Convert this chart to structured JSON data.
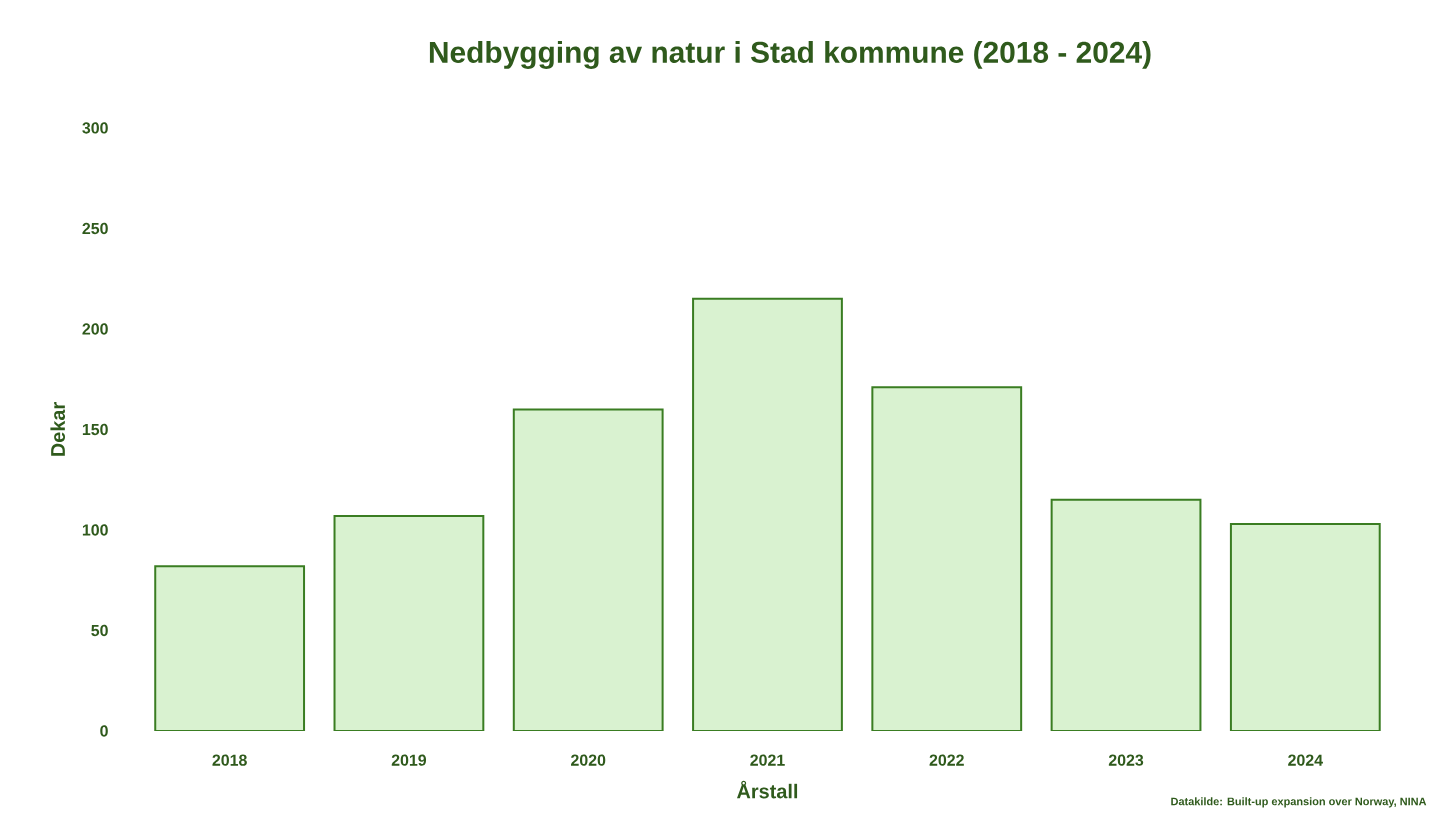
{
  "chart_data": {
    "type": "bar",
    "title": "Nedbygging av natur i Stad kommune (2018 - 2024)",
    "xlabel": "Årstall",
    "ylabel": "Dekar",
    "categories": [
      "2018",
      "2019",
      "2020",
      "2021",
      "2022",
      "2023",
      "2024"
    ],
    "values": [
      82,
      107,
      160,
      215,
      171,
      115,
      103
    ],
    "color": "#d9f2d0",
    "ylim": [
      0,
      300
    ],
    "yticks": [
      0,
      50,
      100,
      150,
      200,
      250,
      300
    ],
    "grid": false,
    "annotations": [
      "Datakilde: Built-up expansion over Norway, NINA"
    ]
  }
}
